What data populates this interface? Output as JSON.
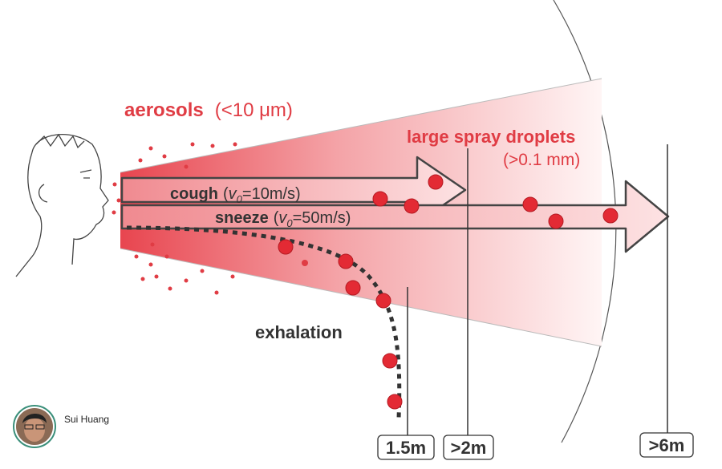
{
  "labels": {
    "aerosols": {
      "word": "aerosols",
      "size": "(<10 μm)"
    },
    "large_spray": {
      "title": "large spray droplets",
      "size": "(>0.1 mm)"
    },
    "cough": {
      "word": "cough",
      "open": "(",
      "var": "v",
      "sub": "0",
      "rest": "=10m/s)"
    },
    "sneeze": {
      "word": "sneeze",
      "open": "(",
      "var": "v",
      "sub": "0",
      "rest": "=50m/s)"
    },
    "exhalation": "exhalation",
    "distances": [
      "1.5m",
      ">2m",
      ">6m"
    ]
  },
  "author": {
    "name": "Sui Huang"
  }
}
